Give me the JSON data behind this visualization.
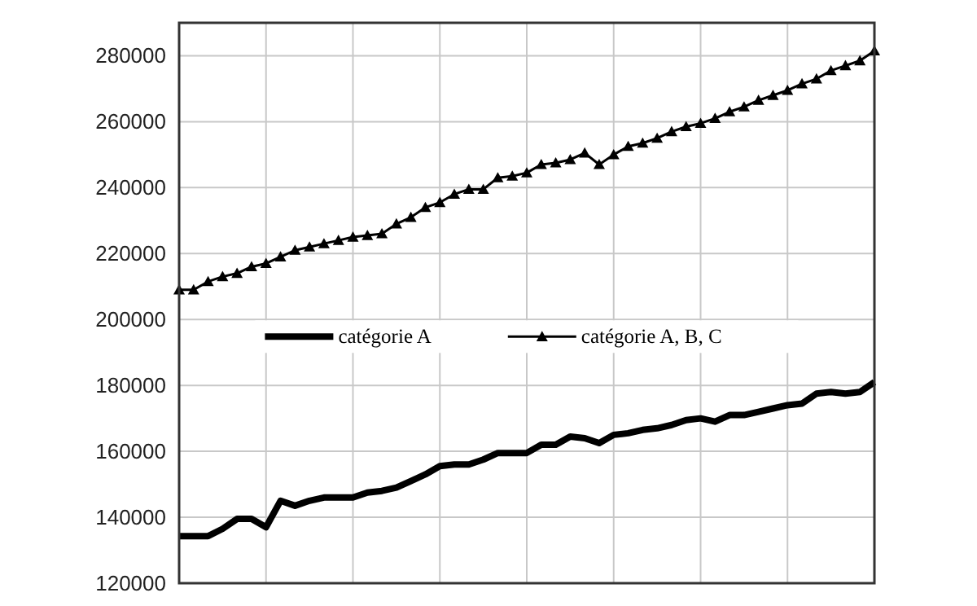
{
  "chart_data": {
    "type": "line",
    "categories": [
      null,
      null,
      null,
      null,
      null,
      null,
      null,
      null,
      null,
      null,
      null,
      null,
      null,
      null,
      null,
      null,
      null,
      null,
      null,
      null,
      null,
      null,
      null,
      null,
      null,
      null,
      null,
      null,
      null,
      null,
      null,
      null,
      null,
      null,
      null,
      null,
      null,
      null,
      null,
      null,
      null,
      null,
      null,
      null,
      null,
      null,
      null,
      null,
      null
    ],
    "ylim": [
      120000,
      290000
    ],
    "yticks": [
      120000,
      140000,
      160000,
      180000,
      200000,
      220000,
      240000,
      260000,
      280000
    ],
    "grid": true,
    "legend": "center",
    "series": [
      {
        "name": "catégorie A",
        "color": "#000000",
        "marker": "none",
        "values": [
          134300,
          134300,
          134300,
          136500,
          139500,
          139500,
          137000,
          145000,
          143500,
          145000,
          146000,
          146000,
          146000,
          147500,
          148000,
          149000,
          151000,
          153000,
          155500,
          156000,
          156000,
          157500,
          159500,
          159500,
          159500,
          162000,
          162000,
          164500,
          164000,
          162500,
          165000,
          165500,
          166500,
          167000,
          168000,
          169500,
          170000,
          169000,
          171000,
          171000,
          172000,
          173000,
          174000,
          174500,
          177500,
          178000,
          177500,
          178000,
          181000
        ]
      },
      {
        "name": "catégorie A, B, C",
        "color": "#000000",
        "marker": "triangle",
        "values": [
          209000,
          209000,
          211500,
          213000,
          214000,
          216000,
          217000,
          219000,
          221000,
          222000,
          223000,
          224000,
          225000,
          225500,
          226000,
          229000,
          231000,
          234000,
          235500,
          238000,
          239500,
          239500,
          243000,
          243500,
          244500,
          247000,
          247500,
          248500,
          250500,
          247000,
          250000,
          252500,
          253500,
          255000,
          257000,
          258500,
          259500,
          261000,
          263000,
          264500,
          266500,
          268000,
          269500,
          271500,
          273000,
          275500,
          277000,
          278500,
          281500
        ]
      }
    ]
  }
}
